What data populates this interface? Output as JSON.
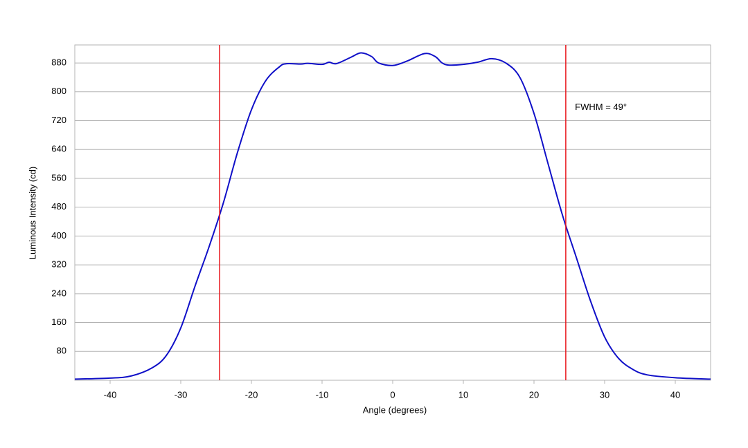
{
  "chart_data": {
    "type": "line",
    "x_label": "Angle (degrees)",
    "y_label": "Luminous Intensity (cd)",
    "x": [
      -45,
      -40,
      -37,
      -34,
      -32,
      -30,
      -28,
      -26,
      -24,
      -22,
      -20,
      -18,
      -16,
      -15,
      -13,
      -12,
      -10,
      -9,
      -8,
      -6,
      -4.5,
      -3,
      -2,
      0,
      2,
      4.5,
      6,
      7,
      8,
      10,
      12,
      14,
      16,
      18,
      20,
      22,
      24,
      26,
      28,
      30,
      32,
      34,
      36,
      40,
      45
    ],
    "series": [
      {
        "color": "#1010c8",
        "values": [
          3,
          6,
          12,
          35,
          70,
          145,
          260,
          370,
          490,
          630,
          750,
          830,
          870,
          878,
          877,
          879,
          876,
          882,
          878,
          895,
          908,
          898,
          880,
          873,
          885,
          906,
          898,
          880,
          874,
          876,
          882,
          892,
          880,
          840,
          740,
          600,
          460,
          340,
          220,
          120,
          60,
          30,
          15,
          7,
          3
        ]
      }
    ],
    "vlines": {
      "color": "#e8141b",
      "x": [
        -24.5,
        24.5
      ]
    },
    "annotations": [
      {
        "text": "FWHM = 49°",
        "x": 25.8,
        "y": 756
      }
    ],
    "xlim": [
      -45,
      45
    ],
    "xticks": [
      -40,
      -30,
      -20,
      -10,
      0,
      10,
      20,
      30,
      40
    ],
    "ylim": [
      0,
      930
    ],
    "yticks": [
      80,
      160,
      240,
      320,
      400,
      480,
      560,
      640,
      720,
      800,
      880
    ],
    "grid": true
  }
}
